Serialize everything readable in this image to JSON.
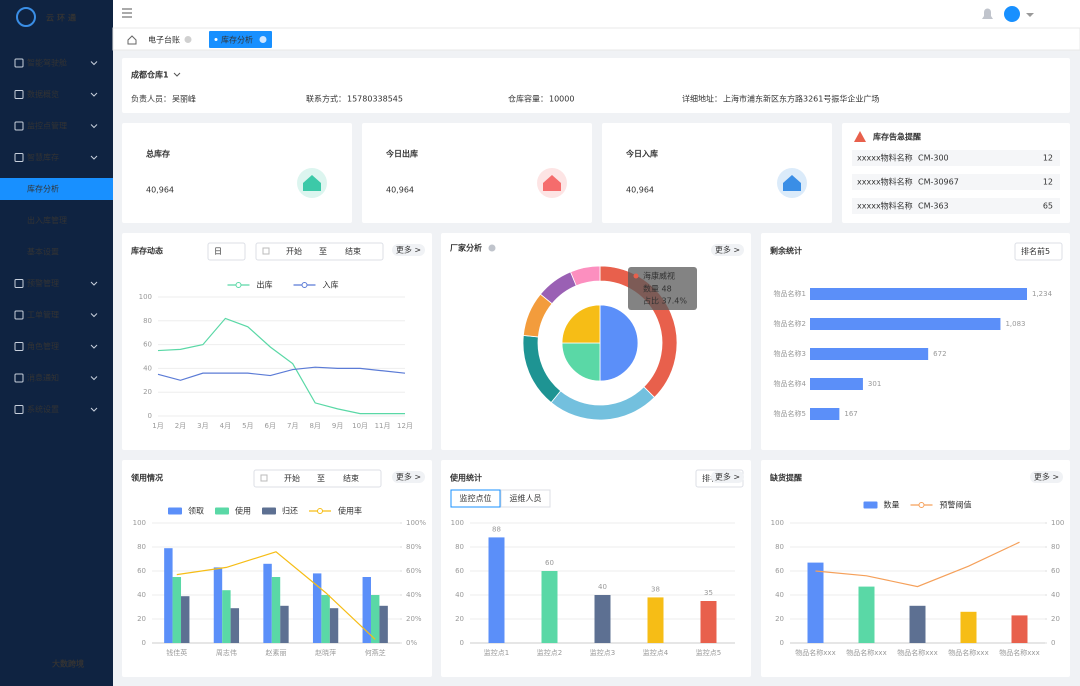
{
  "sidebar": {
    "logo": "云环通",
    "menu": [
      {
        "label": "智能驾驶舱"
      },
      {
        "label": "数据概览"
      },
      {
        "label": "监控点管理"
      },
      {
        "label": "智慧库存",
        "children": [
          {
            "label": "库存分析",
            "active": true
          },
          {
            "label": "出入库管理"
          },
          {
            "label": "基本设置"
          }
        ]
      },
      {
        "label": "预警管理"
      },
      {
        "label": "工单管理"
      },
      {
        "label": "角色管理"
      },
      {
        "label": "消息通知"
      },
      {
        "label": "系统设置"
      }
    ]
  },
  "watermark": "大数跨境",
  "tabs": [
    {
      "label": "电子台账"
    },
    {
      "label": "库存分析",
      "active": true
    }
  ],
  "more_label": "更多 >",
  "warehouse": {
    "name": "成都仓库1",
    "fields": [
      {
        "label": "负责人员：",
        "value": "吴丽峰"
      },
      {
        "label": "联系方式：",
        "value": "15780338545"
      },
      {
        "label": "仓库容量：",
        "value": "10000"
      },
      {
        "label": "详细地址：",
        "value": "上海市浦东新区东方路3261号振华企业广场"
      }
    ]
  },
  "stats": [
    {
      "title": "总库存",
      "value": "40,964",
      "color": "#3cc9a8"
    },
    {
      "title": "今日出库",
      "value": "40,964",
      "color": "#f56c6c"
    },
    {
      "title": "今日入库",
      "value": "40,964",
      "color": "#3a8ee6"
    }
  ],
  "alerts": {
    "title": "库存告急提醒",
    "rows": [
      {
        "name": "xxxxx物料名称",
        "code": "CM-300",
        "count": 12
      },
      {
        "name": "xxxxx物料名称",
        "code": "CM-30967",
        "count": 12
      },
      {
        "name": "xxxxx物料名称",
        "code": "CM-363",
        "count": 65
      }
    ]
  },
  "panels": [
    {
      "title": "库存动态",
      "type": "line",
      "select": "日",
      "date_range": {
        "start": "开始",
        "sep": "至",
        "end": "结束"
      },
      "categories": [
        "1月",
        "2月",
        "3月",
        "4月",
        "5月",
        "6月",
        "7月",
        "8月",
        "9月",
        "10月",
        "11月",
        "12月"
      ],
      "series": [
        {
          "name": "出库",
          "color": "#5ad8a6",
          "values": [
            55,
            56,
            60,
            82,
            75,
            58,
            44,
            11,
            6,
            2,
            2,
            2
          ]
        },
        {
          "name": "入库",
          "color": "#5b7bd6",
          "values": [
            35,
            30,
            36,
            36,
            36,
            34,
            39,
            41,
            40,
            40,
            38,
            36
          ]
        }
      ],
      "ylim": [
        0,
        100
      ],
      "yticks": [
        0,
        20,
        40,
        60,
        80,
        100
      ],
      "grid": true
    },
    {
      "title": "厂家分析",
      "type": "donut",
      "outer": {
        "values": [
          48,
          30,
          20,
          12,
          10,
          8
        ],
        "colors": [
          "#e8604c",
          "#73c0de",
          "#1e9493",
          "#f39c3c",
          "#9a60b4",
          "#fc8fbf"
        ]
      },
      "inner": {
        "values": [
          50,
          25,
          25
        ],
        "colors": [
          "#5b8ff9",
          "#5ad8a6",
          "#f6bd16"
        ]
      },
      "tooltip": {
        "name": "海康威视",
        "lines": [
          "数量 48",
          "占比 37.4%"
        ]
      }
    },
    {
      "title": "剩余统计",
      "type": "hbar",
      "select": "排名前5",
      "categories": [
        "物品名称1",
        "物品名称2",
        "物品名称3",
        "物品名称4",
        "物品名称5"
      ],
      "values": [
        1234,
        1083,
        672,
        301,
        167
      ],
      "value_labels": [
        "1,234",
        "1,083",
        "672",
        "301",
        "167"
      ],
      "color": "#5b8ff9"
    },
    {
      "title": "领用情况",
      "type": "combo",
      "date_range": {
        "start": "开始",
        "sep": "至",
        "end": "结束"
      },
      "categories": [
        "钱佳英",
        "周志伟",
        "赵素丽",
        "赵晓萍",
        "何燕芝"
      ],
      "series": [
        {
          "name": "领取",
          "color": "#5b8ff9",
          "values": [
            79,
            63,
            66,
            58,
            55
          ]
        },
        {
          "name": "使用",
          "color": "#5ad8a6",
          "values": [
            55,
            44,
            55,
            40,
            40
          ]
        },
        {
          "name": "归还",
          "color": "#5d7092",
          "values": [
            39,
            29,
            31,
            29,
            31
          ]
        },
        {
          "name": "使用率",
          "type": "line",
          "axis": "y2",
          "color": "#f6bd16",
          "values": [
            57,
            63,
            76,
            42,
            3
          ]
        }
      ],
      "ylim": [
        0,
        100
      ],
      "yticks": [
        0,
        20,
        40,
        60,
        80,
        100
      ],
      "y2lim": [
        0,
        100
      ],
      "y2ticks": [
        {
          "value": 0,
          "label": "0%"
        },
        {
          "value": 20,
          "label": "20%"
        },
        {
          "value": 40,
          "label": "40%"
        },
        {
          "value": 60,
          "label": "60%"
        },
        {
          "value": 80,
          "label": "80%"
        },
        {
          "value": 100,
          "label": "100%"
        }
      ],
      "grid": true
    },
    {
      "title": "使用统计",
      "type": "bar",
      "tabs": [
        "监控点位",
        "运维人员"
      ],
      "select": "排名前5",
      "categories": [
        "监控点1",
        "监控点2",
        "监控点3",
        "监控点4",
        "监控点5"
      ],
      "values": [
        88,
        60,
        40,
        38,
        35
      ],
      "colors": [
        "#5b8ff9",
        "#5ad8a6",
        "#5d7092",
        "#f6bd16",
        "#e8604c"
      ],
      "ylim": [
        0,
        100
      ],
      "yticks": [
        0,
        20,
        40,
        60,
        80,
        100
      ],
      "grid": true
    },
    {
      "title": "缺货提醒",
      "type": "combo",
      "categories": [
        "物品名称xxx",
        "物品名称xxx",
        "物品名称xxx",
        "物品名称xxx",
        "物品名称xxx"
      ],
      "series": [
        {
          "name": "数量",
          "color": "#5b8ff9",
          "colors": [
            "#5b8ff9",
            "#5ad8a6",
            "#5d7092",
            "#f6bd16",
            "#e8604c"
          ],
          "values": [
            67,
            47,
            31,
            26,
            23
          ]
        },
        {
          "name": "预警阈值",
          "type": "line",
          "axis": "y2",
          "color": "#f5a05a",
          "values": [
            60,
            56,
            47,
            64,
            84
          ]
        }
      ],
      "ylim": [
        0,
        100
      ],
      "yticks": [
        0,
        20,
        40,
        60,
        80,
        100
      ],
      "y2lim": [
        0,
        100
      ],
      "y2ticks": [
        0,
        20,
        40,
        60,
        80,
        100
      ],
      "grid": true
    }
  ]
}
